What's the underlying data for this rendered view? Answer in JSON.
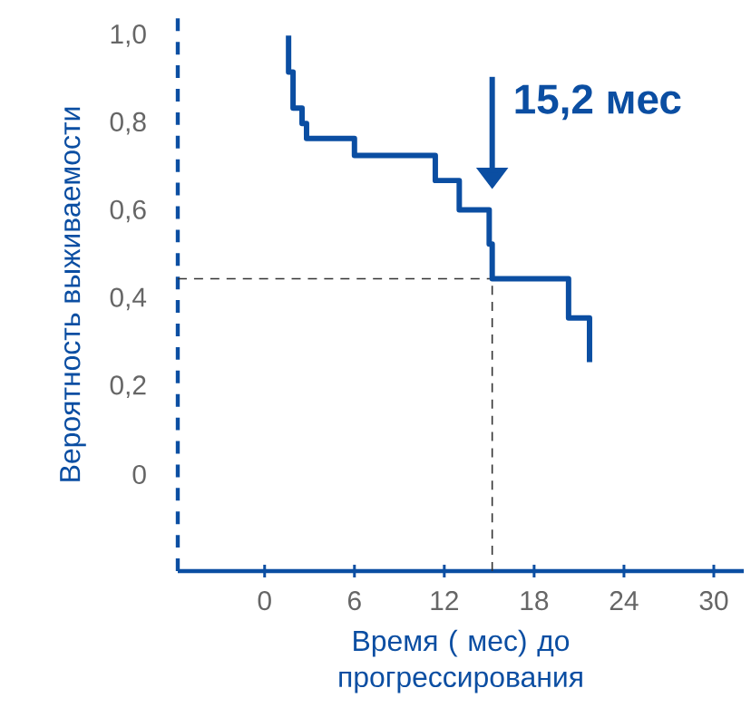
{
  "chart_data": {
    "type": "step",
    "xlabel": "Время ( мес) до прогрессирования",
    "ylabel": "Вероятность выживаемости",
    "x": [
      1.6,
      1.6,
      1.9,
      2.5,
      2.8,
      6.0,
      11.4,
      13.0,
      15.0,
      15.2,
      20.3,
      21.7
    ],
    "values": [
      1.0,
      0.917,
      0.835,
      0.8,
      0.766,
      0.727,
      0.67,
      0.603,
      0.525,
      0.446,
      0.357,
      0.256
    ],
    "color": "#0b4ea2",
    "xlim": [
      -5.8,
      32
    ],
    "ylim": [
      -0.22,
      1.04
    ],
    "xticks": [
      0,
      6,
      12,
      18,
      24,
      30
    ],
    "yticks": [
      0,
      {
        "value": 0.2,
        "label": "0,2"
      },
      {
        "value": 0.4,
        "label": "0,4"
      },
      {
        "value": 0.6,
        "label": "0,6"
      },
      {
        "value": 0.8,
        "label": "0,8"
      },
      {
        "value": 1.0,
        "label": "1,0"
      }
    ],
    "ref_lines": [
      {
        "axis": "x",
        "value": 15.2,
        "color": "#333333",
        "line_style": "dashed"
      },
      {
        "axis": "y",
        "value": 0.446,
        "color": "#333333",
        "line_style": "dashed"
      }
    ],
    "annotations": [
      "15,2 мес"
    ],
    "grid": false
  }
}
